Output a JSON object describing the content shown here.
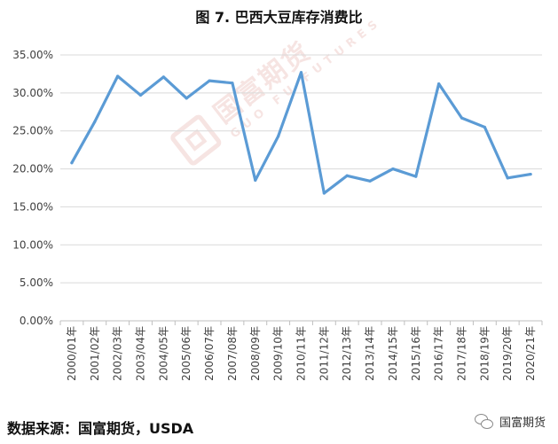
{
  "title": "图 7. 巴西大豆库存消费比",
  "source": "数据来源：国富期货，USDA",
  "brand": "国富期货",
  "watermark": {
    "cn": "国富期货",
    "en": "GUO FU FUTURES"
  },
  "colors": {
    "line": "#5B9BD5",
    "grid": "#d9d9d9",
    "axis": "#bfbfbf",
    "text": "#404040"
  },
  "chart_data": {
    "type": "line",
    "title": "图 7. 巴西大豆库存消费比",
    "xlabel": "",
    "ylabel": "",
    "ylim": [
      0,
      35
    ],
    "grid": true,
    "y_ticks": [
      "0.00%",
      "5.00%",
      "10.00%",
      "15.00%",
      "20.00%",
      "25.00%",
      "30.00%",
      "35.00%"
    ],
    "categories": [
      "2000/01年",
      "2001/02年",
      "2002/03年",
      "2003/04年",
      "2004/05年",
      "2005/06年",
      "2006/07年",
      "2007/08年",
      "2008/09年",
      "2009/10年",
      "2010/11年",
      "2011/12年",
      "2012/13年",
      "2013/14年",
      "2014/15年",
      "2015/16年",
      "2016/17年",
      "2017/18年",
      "2018/19年",
      "2019/20年",
      "2020/21年"
    ],
    "series": [
      {
        "values": [
          20.8,
          26.2,
          32.2,
          29.7,
          32.1,
          29.3,
          31.6,
          31.3,
          18.5,
          24.3,
          32.7,
          16.8,
          19.1,
          18.4,
          20.0,
          19.0,
          31.2,
          26.7,
          25.5,
          18.8,
          19.3
        ]
      }
    ]
  }
}
